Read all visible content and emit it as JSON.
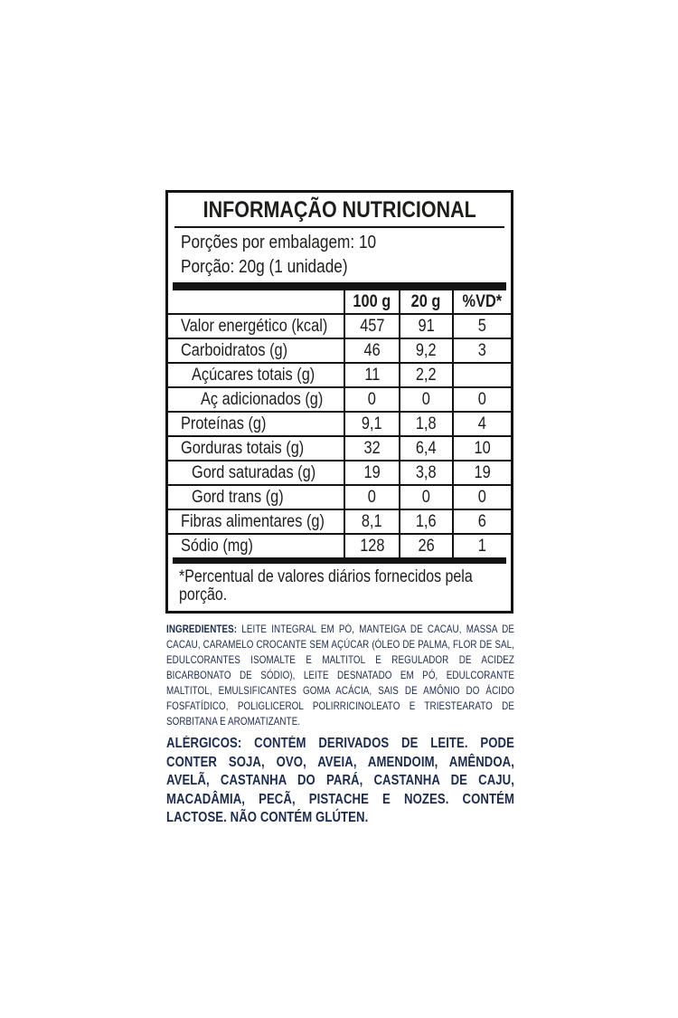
{
  "panel": {
    "title": "INFORMAÇÃO NUTRICIONAL",
    "servings_per_package": "Porções por embalagem: 10",
    "serving_size": "Porção: 20g (1 unidade)",
    "columns": {
      "per100g": "100 g",
      "per20g": "20 g",
      "dv": "%VD*"
    },
    "rows": [
      {
        "label": "Valor energético (kcal)",
        "per100g": "457",
        "per20g": "91",
        "dv": "5"
      },
      {
        "label": "Carboidratos (g)",
        "per100g": "46",
        "per20g": "9,2",
        "dv": "3"
      },
      {
        "label": "Açúcares totais (g)",
        "per100g": "11",
        "per20g": "2,2",
        "dv": ""
      },
      {
        "label": "Aç adicionados (g)",
        "per100g": "0",
        "per20g": "0",
        "dv": "0"
      },
      {
        "label": "Proteínas (g)",
        "per100g": "9,1",
        "per20g": "1,8",
        "dv": "4"
      },
      {
        "label": "Gorduras totais (g)",
        "per100g": "32",
        "per20g": "6,4",
        "dv": "10"
      },
      {
        "label": "Gord saturadas (g)",
        "per100g": "19",
        "per20g": "3,8",
        "dv": "19"
      },
      {
        "label": "Gord trans (g)",
        "per100g": "0",
        "per20g": "0",
        "dv": "0"
      },
      {
        "label": "Fibras alimentares (g)",
        "per100g": "8,1",
        "per20g": "1,6",
        "dv": "6"
      },
      {
        "label": "Sódio (mg)",
        "per100g": "128",
        "per20g": "26",
        "dv": "1"
      }
    ],
    "footnote": "*Percentual de valores diários fornecidos pela porção."
  },
  "ingredients": {
    "label": "INGREDIENTES:",
    "text": "LEITE INTEGRAL EM PÓ, MANTEIGA DE CACAU, MASSA DE CACAU, CARAMELO CROCANTE SEM AÇÚCAR (ÓLEO DE PALMA, FLOR DE SAL, EDULCORANTES ISOMALTE E MALTITOL E REGULADOR DE ACIDEZ BICARBONATO DE SÓDIO), LEITE DESNATADO EM PÓ, EDULCORANTE MALTITOL, EMULSIFICANTES GOMA ACÁCIA, SAIS DE AMÔNIO DO ÁCIDO FOSFATÍDICO, POLIGLICEROL POLIRRICINOLEATO E TRIESTEARATO DE SORBITANA E AROMATIZANTE."
  },
  "allergens": {
    "text": "ALÉRGICOS: CONTÉM DERIVADOS DE LEITE. PODE CONTER SOJA, OVO, AVEIA, AMENDOIM, AMÊNDOA, AVELÃ, CASTANHA DO PARÁ, CASTANHA DE CAJU, MACADÂMIA, PECÃ, PISTACHE E NOZES. CONTÉM LACTOSE. NÃO CONTÉM GLÚTEN."
  },
  "colors": {
    "table_ink": "#1d1d1b",
    "info_ink": "#1b2a4d"
  }
}
